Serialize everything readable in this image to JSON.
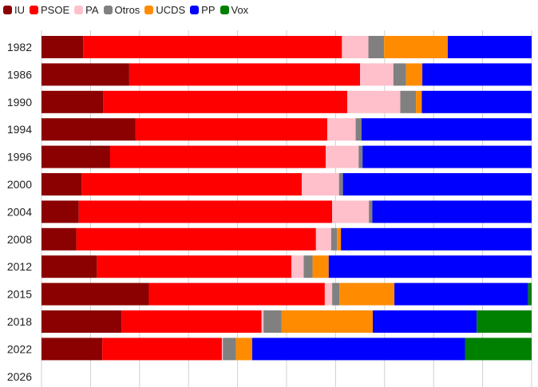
{
  "chart_data": {
    "type": "bar",
    "orientation": "horizontal",
    "stacked": true,
    "normalized": true,
    "legend_position": "top-left",
    "grid": true,
    "xlim": [
      0,
      100
    ],
    "categories": [
      "1982",
      "1986",
      "1990",
      "1994",
      "1996",
      "2000",
      "2004",
      "2008",
      "2012",
      "2015",
      "2018",
      "2022",
      "2026"
    ],
    "series": [
      {
        "name": "IU",
        "color": "#8b0000",
        "values": [
          8.5,
          17.9,
          12.6,
          19.2,
          14.0,
          8.2,
          7.6,
          7.1,
          11.3,
          21.9,
          16.3,
          12.4,
          0
        ]
      },
      {
        "name": "PSOE",
        "color": "#ff0000",
        "values": [
          52.8,
          47.1,
          49.8,
          39.1,
          44.0,
          44.9,
          51.7,
          48.9,
          39.7,
          35.9,
          28.6,
          24.4,
          0
        ]
      },
      {
        "name": "PA",
        "color": "#ffc0cb",
        "values": [
          5.4,
          6.8,
          10.8,
          5.8,
          6.7,
          7.6,
          7.5,
          3.1,
          2.5,
          1.5,
          0.4,
          0.2,
          0
        ]
      },
      {
        "name": "Otros",
        "color": "#808080",
        "values": [
          3.2,
          2.6,
          3.2,
          1.2,
          0.8,
          0.8,
          0.7,
          1.2,
          1.8,
          1.5,
          3.7,
          2.7,
          0
        ]
      },
      {
        "name": "UCDS",
        "color": "#ff8c00",
        "values": [
          13.0,
          3.3,
          1.2,
          0,
          0,
          0,
          0,
          0.8,
          3.3,
          11.2,
          18.6,
          3.3,
          0
        ]
      },
      {
        "name": "PP",
        "color": "#0000ff",
        "values": [
          17.1,
          22.3,
          22.4,
          34.7,
          34.5,
          38.5,
          32.5,
          38.9,
          41.4,
          27.3,
          21.2,
          43.4,
          0
        ]
      },
      {
        "name": "Vox",
        "color": "#008000",
        "values": [
          0,
          0,
          0,
          0,
          0,
          0,
          0,
          0,
          0,
          0.7,
          11.2,
          13.6,
          0
        ]
      }
    ]
  }
}
